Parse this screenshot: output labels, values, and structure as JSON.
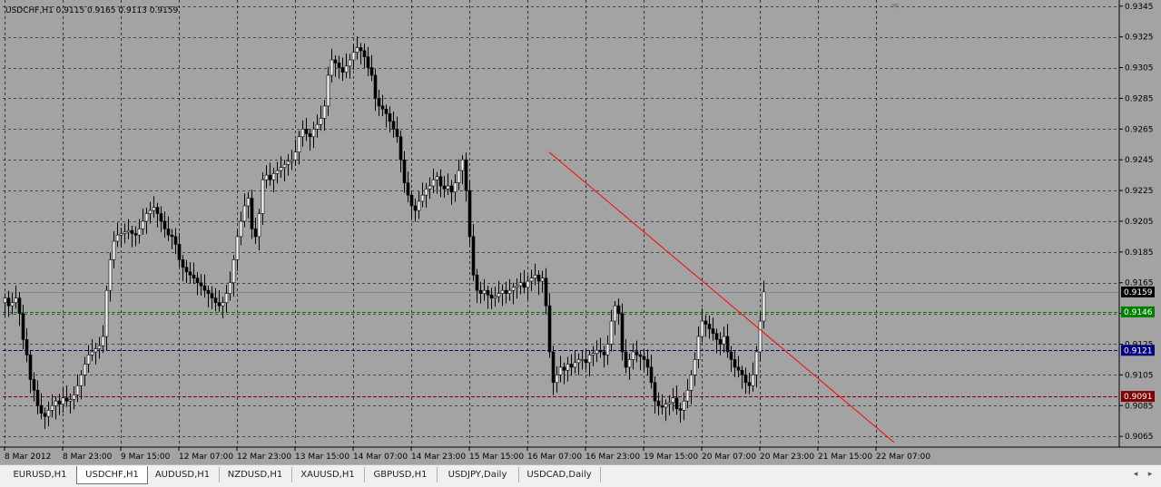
{
  "chart_data": {
    "type": "candlestick",
    "title": "USDCHF,H1  0.9115 0.9165 0.9113 0.9159",
    "symbol": "USDCHF",
    "timeframe": "H1",
    "ohlc_header": {
      "open": 0.9115,
      "high": 0.9165,
      "low": 0.9113,
      "close": 0.9159
    },
    "y_ticks": [
      "0.9345",
      "0.9325",
      "0.9305",
      "0.9285",
      "0.9265",
      "0.9245",
      "0.9225",
      "0.9205",
      "0.9185",
      "0.9165",
      "0.9145",
      "0.9125",
      "0.9105",
      "0.9085",
      "0.9065"
    ],
    "ylim": [
      0.9058,
      0.9349
    ],
    "x_ticks": [
      "8 Mar 2012",
      "8 Mar 23:00",
      "9 Mar 15:00",
      "12 Mar 07:00",
      "12 Mar 23:00",
      "13 Mar 15:00",
      "14 Mar 07:00",
      "14 Mar 23:00",
      "15 Mar 15:00",
      "16 Mar 07:00",
      "16 Mar 23:00",
      "19 Mar 15:00",
      "20 Mar 07:00",
      "20 Mar 23:00",
      "21 Mar 15:00",
      "22 Mar 07:00"
    ],
    "price_levels": [
      {
        "label": "0.9159",
        "value": 0.9159,
        "color": "#000000",
        "line": "#7a8a9a",
        "style": "solid"
      },
      {
        "label": "0.9146",
        "value": 0.9146,
        "color": "#008000",
        "line": "#008000",
        "style": "dashed"
      },
      {
        "label": "0.9121",
        "value": 0.9121,
        "color": "#000080",
        "line": "#000080",
        "style": "dashed"
      },
      {
        "label": "0.9091",
        "value": 0.9091,
        "color": "#800000",
        "line": "#800000",
        "style": "dashed"
      }
    ],
    "trendline": {
      "start": {
        "index": 150,
        "price": 0.925
      },
      "end": {
        "index": 245,
        "price": 0.9061
      },
      "color": "#ff0000"
    },
    "close_path": [
      0.9155,
      0.915,
      0.9152,
      0.9155,
      0.9145,
      0.9128,
      0.9118,
      0.9102,
      0.9095,
      0.9085,
      0.908,
      0.9078,
      0.9082,
      0.9085,
      0.9088,
      0.9086,
      0.909,
      0.9088,
      0.9089,
      0.9092,
      0.9098,
      0.9105,
      0.9112,
      0.9118,
      0.912,
      0.9122,
      0.9124,
      0.913,
      0.916,
      0.918,
      0.9192,
      0.9196,
      0.9197,
      0.9198,
      0.9199,
      0.9197,
      0.9196,
      0.92,
      0.9205,
      0.921,
      0.9212,
      0.9214,
      0.921,
      0.9205,
      0.92,
      0.9196,
      0.9195,
      0.919,
      0.918,
      0.9175,
      0.9172,
      0.917,
      0.9168,
      0.9165,
      0.9163,
      0.916,
      0.9158,
      0.9155,
      0.9152,
      0.915,
      0.9152,
      0.9158,
      0.9165,
      0.918,
      0.9195,
      0.9205,
      0.9215,
      0.922,
      0.92,
      0.9195,
      0.921,
      0.9232,
      0.9235,
      0.9232,
      0.9236,
      0.9238,
      0.924,
      0.9242,
      0.9244,
      0.9245,
      0.925,
      0.926,
      0.9265,
      0.9262,
      0.926,
      0.9265,
      0.9268,
      0.9272,
      0.928,
      0.93,
      0.931,
      0.9308,
      0.9305,
      0.9302,
      0.9306,
      0.931,
      0.9315,
      0.9318,
      0.9316,
      0.9312,
      0.9305,
      0.93,
      0.9285,
      0.928,
      0.9278,
      0.9275,
      0.927,
      0.9265,
      0.926,
      0.9245,
      0.923,
      0.9222,
      0.9215,
      0.9212,
      0.9218,
      0.9222,
      0.9226,
      0.9228,
      0.9232,
      0.9234,
      0.9228,
      0.9226,
      0.9228,
      0.9224,
      0.923,
      0.9238,
      0.9245,
      0.9225,
      0.9195,
      0.917,
      0.916,
      0.9158,
      0.916,
      0.9157,
      0.9155,
      0.9156,
      0.9158,
      0.916,
      0.9158,
      0.916,
      0.9162,
      0.9163,
      0.9165,
      0.9162,
      0.9166,
      0.9168,
      0.917,
      0.9166,
      0.9168,
      0.915,
      0.912,
      0.91,
      0.9105,
      0.911,
      0.9108,
      0.9112,
      0.911,
      0.9113,
      0.9115,
      0.9115,
      0.9113,
      0.9118,
      0.9119,
      0.9121,
      0.912,
      0.9118,
      0.9125,
      0.914,
      0.915,
      0.9145,
      0.912,
      0.911,
      0.9115,
      0.912,
      0.9118,
      0.9117,
      0.9115,
      0.911,
      0.91,
      0.9088,
      0.9085,
      0.9084,
      0.9086,
      0.9087,
      0.909,
      0.9083,
      0.9082,
      0.9088,
      0.9095,
      0.9105,
      0.9115,
      0.913,
      0.914,
      0.9138,
      0.9135,
      0.9132,
      0.9128,
      0.9125,
      0.913,
      0.912,
      0.9115,
      0.911,
      0.9108,
      0.9105,
      0.91,
      0.9098,
      0.9105,
      0.912,
      0.914,
      0.9159
    ]
  },
  "tabs": [
    {
      "label": "EURUSD,H1",
      "active": false
    },
    {
      "label": "USDCHF,H1",
      "active": true
    },
    {
      "label": "AUDUSD,H1",
      "active": false
    },
    {
      "label": "NZDUSD,H1",
      "active": false
    },
    {
      "label": "XAUUSD,H1",
      "active": false
    },
    {
      "label": "GBPUSD,H1",
      "active": false
    },
    {
      "label": "USDJPY,Daily",
      "active": false
    },
    {
      "label": "USDCAD,Daily",
      "active": false
    }
  ],
  "scroll": {
    "left_icon": "◂",
    "right_icon": "▸"
  },
  "colors": {
    "background": "#a3a3a3",
    "grid": "#000000",
    "bull_body": "#ffffff",
    "bear_body": "#000000",
    "candle_outline": "#000000"
  }
}
